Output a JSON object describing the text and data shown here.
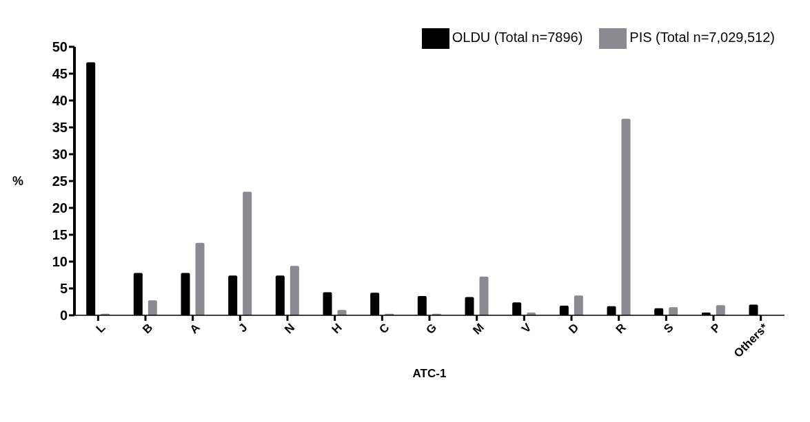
{
  "chart_data": {
    "type": "bar",
    "xlabel": "ATC-1",
    "ylabel": "%",
    "categories": [
      "L",
      "B",
      "A",
      "J",
      "N",
      "H",
      "C",
      "G",
      "M",
      "V",
      "D",
      "R",
      "S",
      "P",
      "Others*"
    ],
    "series": [
      {
        "name": "OLDU (Total n=7896)",
        "color": "#000000",
        "values": [
          47.1,
          7.9,
          7.9,
          7.4,
          7.4,
          4.3,
          4.2,
          3.6,
          3.4,
          2.4,
          1.8,
          1.7,
          1.3,
          0.5,
          2.0
        ]
      },
      {
        "name": "PIS (Total n=7,029,512)",
        "color": "#8a8b90",
        "values": [
          0.3,
          2.8,
          13.5,
          23.0,
          9.2,
          1.0,
          0.3,
          0.3,
          7.2,
          0.5,
          3.7,
          36.6,
          1.5,
          1.9,
          null
        ]
      }
    ],
    "ylim": [
      0,
      50
    ],
    "yticks": [
      0,
      5,
      10,
      15,
      20,
      25,
      30,
      35,
      40,
      45,
      50
    ],
    "grid": false,
    "legend": "top right"
  }
}
